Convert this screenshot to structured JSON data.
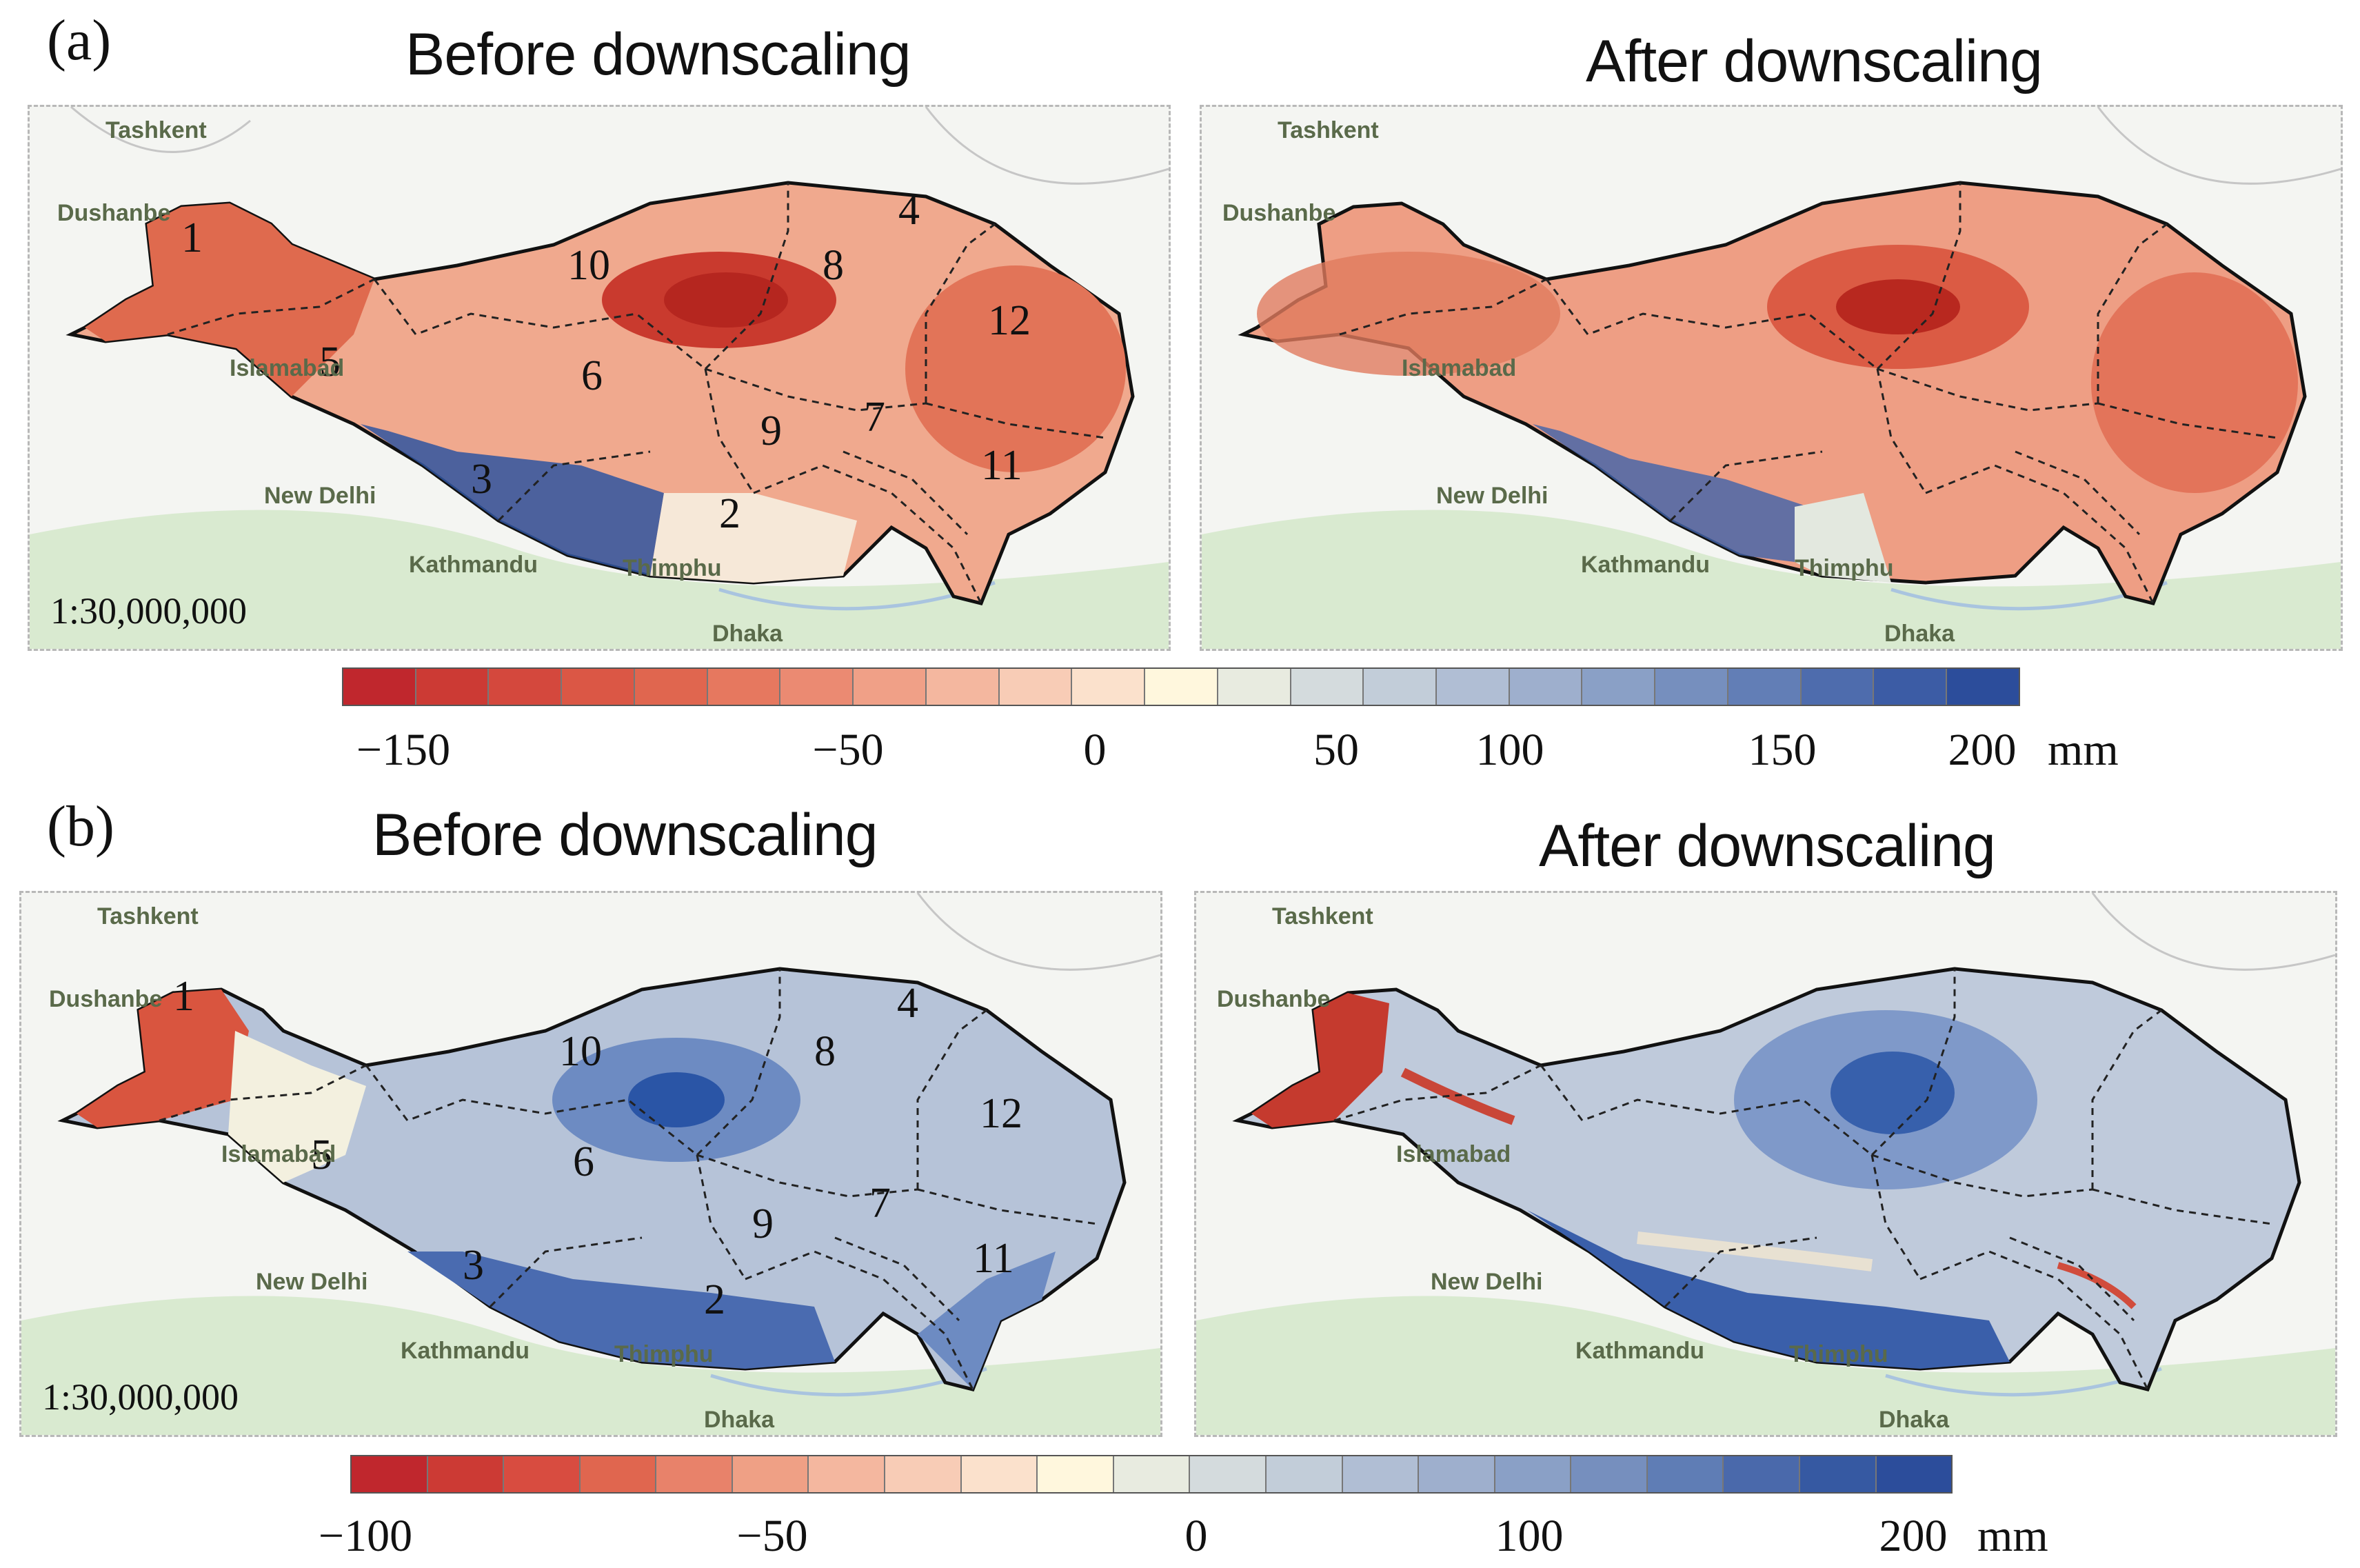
{
  "panels": {
    "a": {
      "label": "(a)",
      "before_title": "Before downscaling",
      "after_title": "After downscaling",
      "scale": "1:30,000,000",
      "colorbar": {
        "ticks": [
          "−150",
          "−50",
          "0",
          "50",
          "100",
          "150",
          "200"
        ],
        "unit": "mm",
        "colors": [
          "#c0272d",
          "#cc3a34",
          "#d4483d",
          "#db5745",
          "#e0664f",
          "#e6785f",
          "#eb8a72",
          "#f0a087",
          "#f4b79f",
          "#f8ccb6",
          "#fbe1cc",
          "#fff7dd",
          "#e8ebe0",
          "#d4dbdd",
          "#c2cdd9",
          "#b0bed4",
          "#9eafcd",
          "#8aa0c6",
          "#768fbe",
          "#627eb6",
          "#4e6cad",
          "#3c5ca5",
          "#2c4d9b"
        ]
      }
    },
    "b": {
      "label": "(b)",
      "before_title": "Before downscaling",
      "after_title": "After downscaling",
      "scale": "1:30,000,000",
      "colorbar": {
        "ticks": [
          "−100",
          "−50",
          "0",
          "100",
          "200"
        ],
        "unit": "mm",
        "colors": [
          "#c0272d",
          "#cc3a34",
          "#d84c40",
          "#e0664f",
          "#e8826a",
          "#efa085",
          "#f4b79f",
          "#f8ccb6",
          "#fbe1cc",
          "#fff7dd",
          "#e8ebe0",
          "#d4dbdd",
          "#c2cdd9",
          "#b0bed4",
          "#9eafcd",
          "#8aa0c6",
          "#768fbe",
          "#5f7db5",
          "#4a69ab",
          "#3659a2",
          "#2c4d9b"
        ]
      }
    }
  },
  "cities": [
    "Tashkent",
    "Dushanbe",
    "Islamabad",
    "New Delhi",
    "Kathmandu",
    "Thimphu",
    "Dhaka"
  ],
  "regions": [
    "1",
    "2",
    "3",
    "4",
    "5",
    "6",
    "7",
    "8",
    "9",
    "10",
    "11",
    "12"
  ],
  "map_colors": {
    "a_before": "#ee9a80",
    "a_after": "#ec8f76",
    "b_before": "#aebfd8",
    "b_after": "#b9c6d8",
    "wet_blue": "#2f55a0",
    "dry_red": "#c23a30",
    "basemap": "#f4f5f2",
    "river": "#a9c4df",
    "vegetation": "#cfe4c5"
  }
}
